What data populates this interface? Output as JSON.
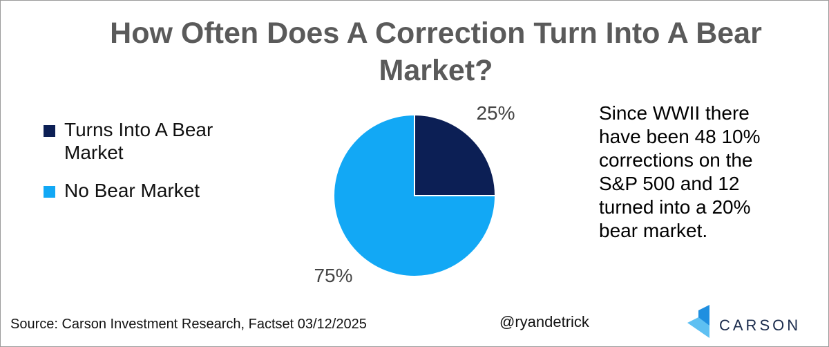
{
  "chart_data": {
    "type": "pie",
    "title": "How Often Does A Correction Turn Into A Bear Market?",
    "categories": [
      "Turns Into A Bear Market",
      "No Bear Market"
    ],
    "values": [
      25,
      75
    ],
    "value_labels": [
      "25%",
      "75%"
    ],
    "colors": [
      "#0c1f55",
      "#12a8f5"
    ],
    "legend": "left",
    "annotation": "Since WWII there have been 48 10% corrections on the S&P 500 and 12 turned into a 20% bear market.",
    "source": "Source: Carson Investment Research, Factset 03/12/2025",
    "credit": "@ryandetrick",
    "brand": "CARSON"
  }
}
